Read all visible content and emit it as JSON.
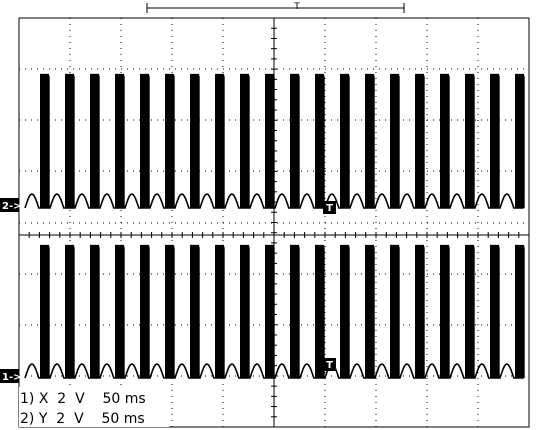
{
  "screen": {
    "background": "#ffffff",
    "trace_color": "#000000",
    "grid_color": "#000000"
  },
  "timebase_cursor": {
    "label": "T"
  },
  "channels": [
    {
      "marker": "1->",
      "trigger_label": "T"
    },
    {
      "marker": "2->",
      "trigger_label": "T"
    }
  ],
  "readouts": [
    {
      "text": "1) X  2  V    50 ms"
    },
    {
      "text": "2) Y  2  V    50 ms"
    }
  ]
}
